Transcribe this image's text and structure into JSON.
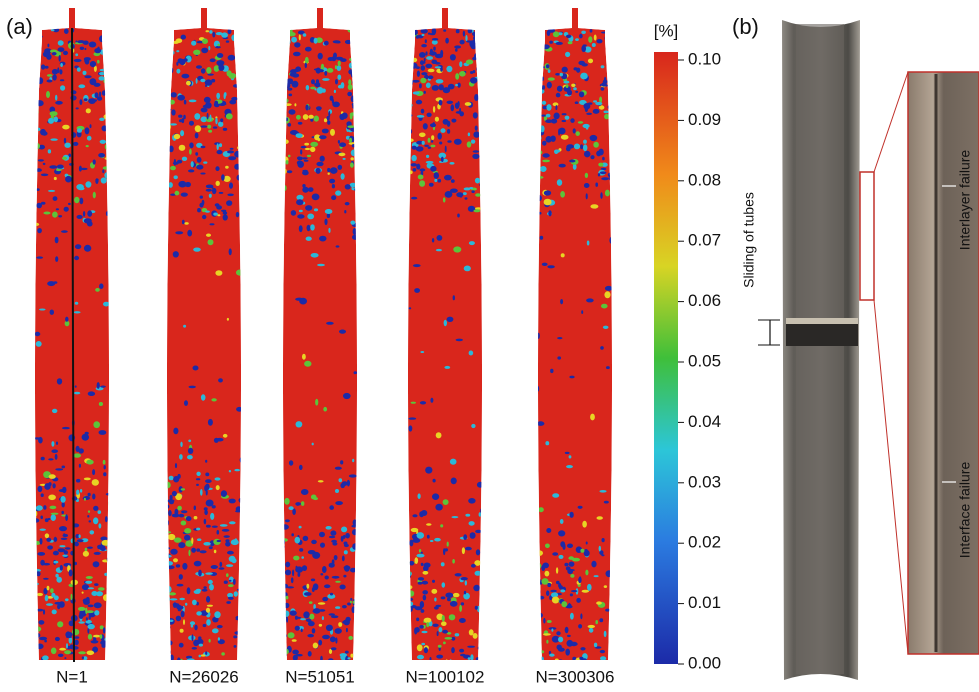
{
  "panel_a": {
    "label": "(a)",
    "specimens": [
      "N=1",
      "N=26026",
      "N=51051",
      "N=100102",
      "N=300306"
    ],
    "colorbar": {
      "unit": "[%]",
      "ticks": [
        "0.10",
        "0.09",
        "0.08",
        "0.07",
        "0.06",
        "0.05",
        "0.04",
        "0.03",
        "0.02",
        "0.01",
        "0.00"
      ]
    }
  },
  "panel_b": {
    "label": "(b)",
    "annotations": [
      "Sliding of tubes",
      "Interlayer failure",
      "Interface failure"
    ]
  }
}
